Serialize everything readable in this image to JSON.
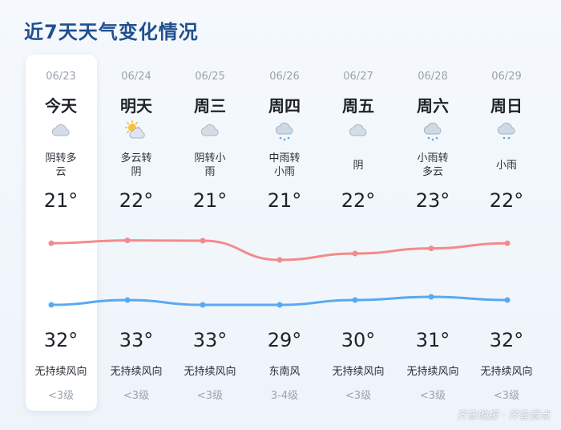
{
  "title": "近7天天气变化情况",
  "days": [
    {
      "date": "06/23",
      "day": "今天",
      "icon": "cloudy-icon",
      "desc": [
        "阴转多",
        "云"
      ],
      "high": "21°",
      "low": "32°",
      "wind_dir": "无持续风向",
      "wind_lvl": "<3级",
      "high_val": 21,
      "low_val": 32
    },
    {
      "date": "06/24",
      "day": "明天",
      "icon": "partly-cloudy-icon",
      "desc": [
        "多云转",
        "阴"
      ],
      "high": "22°",
      "low": "33°",
      "wind_dir": "无持续风向",
      "wind_lvl": "<3级",
      "high_val": 22,
      "low_val": 33
    },
    {
      "date": "06/25",
      "day": "周三",
      "icon": "cloudy-icon",
      "desc": [
        "阴转小",
        "雨"
      ],
      "high": "21°",
      "low": "33°",
      "wind_dir": "无持续风向",
      "wind_lvl": "<3级",
      "high_val": 21,
      "low_val": 33
    },
    {
      "date": "06/26",
      "day": "周四",
      "icon": "rain-icon",
      "desc": [
        "中雨转",
        "小雨"
      ],
      "high": "21°",
      "low": "29°",
      "wind_dir": "东南风",
      "wind_lvl": "3-4级",
      "high_val": 21,
      "low_val": 29
    },
    {
      "date": "06/27",
      "day": "周五",
      "icon": "cloudy-icon",
      "desc": [
        "阴"
      ],
      "high": "22°",
      "low": "30°",
      "wind_dir": "无持续风向",
      "wind_lvl": "<3级",
      "high_val": 22,
      "low_val": 30
    },
    {
      "date": "06/28",
      "day": "周六",
      "icon": "rain-icon",
      "desc": [
        "小雨转",
        "多云"
      ],
      "high": "23°",
      "low": "31°",
      "wind_dir": "无持续风向",
      "wind_lvl": "<3级",
      "high_val": 23,
      "low_val": 31
    },
    {
      "date": "06/29",
      "day": "周日",
      "icon": "light-rain-icon",
      "desc": [
        "小雨"
      ],
      "high": "22°",
      "low": "32°",
      "wind_dir": "无持续风向",
      "wind_lvl": "<3级",
      "high_val": 22,
      "low_val": 32
    }
  ],
  "curves": {
    "upper": {
      "color": "#f28b8b",
      "levels": [
        0.35,
        0.24,
        0.25,
        1.0,
        0.75,
        0.55,
        0.35
      ]
    },
    "lower": {
      "color": "#5aa8f2",
      "levels": [
        0.55,
        0.25,
        0.55,
        0.55,
        0.25,
        0.05,
        0.25
      ]
    }
  },
  "watermark": "齐鲁晚报 · 齐鲁壹点"
}
